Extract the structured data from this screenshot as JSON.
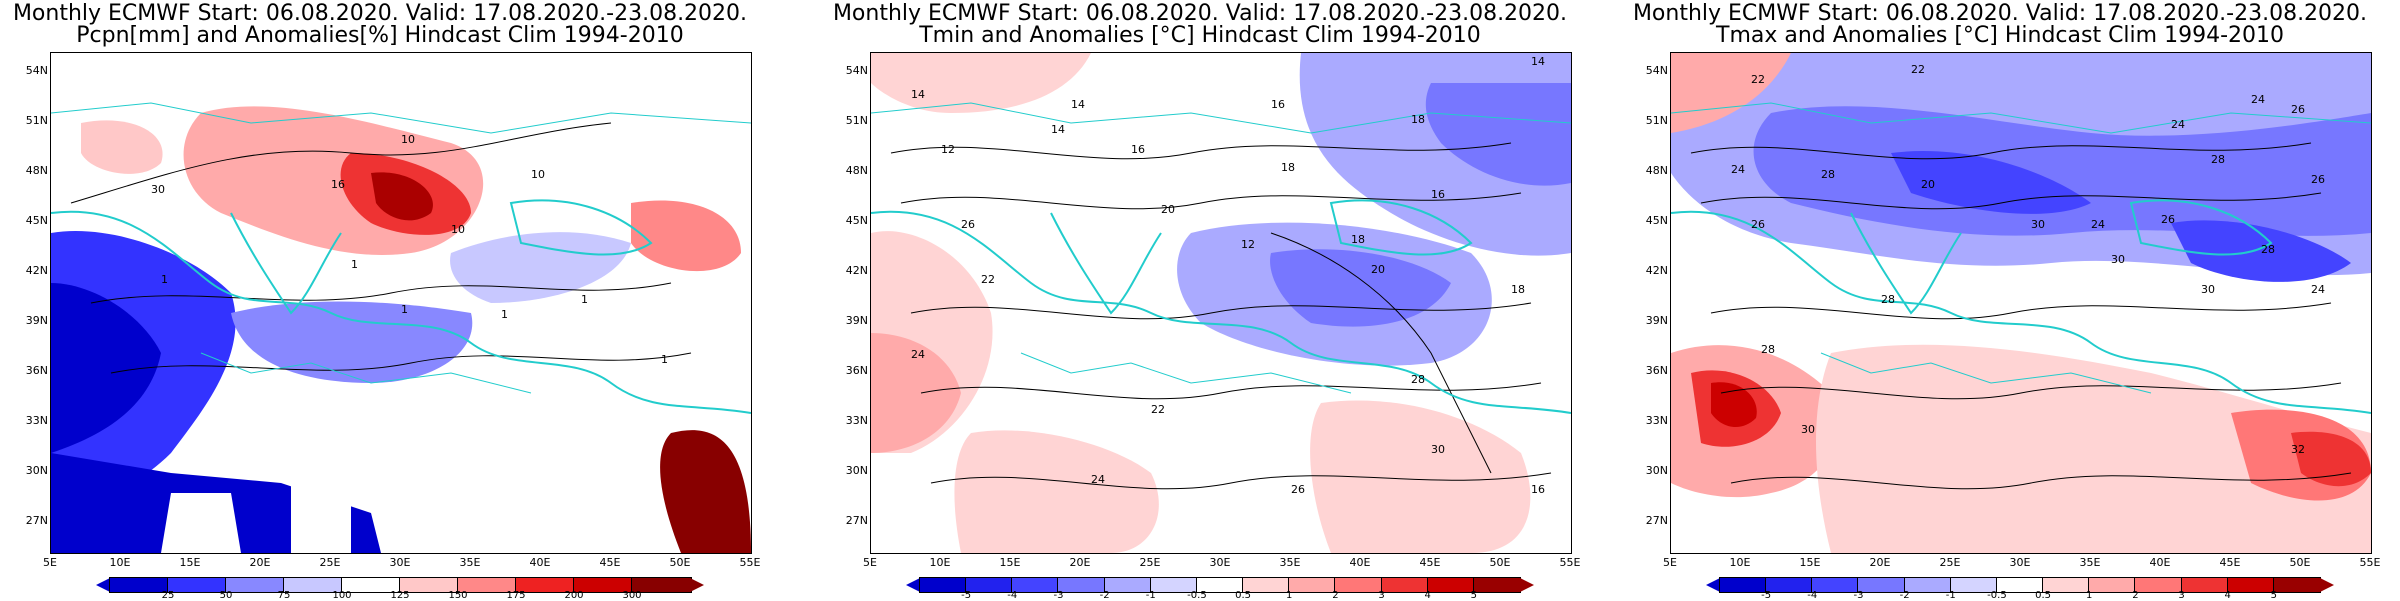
{
  "panels": [
    {
      "id": "pcpn",
      "title_line1": "Monthly ECMWF Start: 06.08.2020. Valid: 17.08.2020.-23.08.2020.",
      "title_line2": "Pcpn[mm] and Anomalies[%] Hindcast Clim 1994-2010",
      "colorbar_labels": [
        "25",
        "50",
        "75",
        "100",
        "125",
        "150",
        "175",
        "200",
        "300"
      ],
      "colorbar_colors": [
        "#0000cc",
        "#3333ff",
        "#8888ff",
        "#c8c8ff",
        "#ffffff",
        "#ffc8c8",
        "#ff8888",
        "#ee2222",
        "#cc0000",
        "#880000"
      ],
      "contour_labels": [
        "10",
        "30",
        "16",
        "10",
        "1",
        "1",
        "10",
        "1",
        "1",
        "1",
        "1"
      ]
    },
    {
      "id": "tmin",
      "title_line1": "Monthly ECMWF Start: 06.08.2020. Valid: 17.08.2020.-23.08.2020.",
      "title_line2": "Tmin and Anomalies [°C] Hindcast Clim 1994-2010",
      "colorbar_labels": [
        "-5",
        "-4",
        "-3",
        "-2",
        "-1",
        "-0.5",
        "0.5",
        "1",
        "2",
        "3",
        "4",
        "5"
      ],
      "colorbar_colors": [
        "#0000cc",
        "#2222ee",
        "#4444ff",
        "#7777ff",
        "#aaaaff",
        "#d4d4ff",
        "#ffffff",
        "#ffd4d4",
        "#ffaaaa",
        "#ff7777",
        "#ee3333",
        "#cc0000",
        "#990000"
      ],
      "contour_labels": [
        "14",
        "14",
        "14",
        "16",
        "12",
        "18",
        "16",
        "14",
        "18",
        "16",
        "20",
        "12",
        "18",
        "18",
        "20",
        "22",
        "26",
        "24",
        "22",
        "26",
        "24",
        "28",
        "30",
        "16"
      ]
    },
    {
      "id": "tmax",
      "title_line1": "Monthly ECMWF Start: 06.08.2020. Valid: 17.08.2020.-23.08.2020.",
      "title_line2": "Tmax and Anomalies [°C] Hindcast Clim 1994-2010",
      "colorbar_labels": [
        "-5",
        "-4",
        "-3",
        "-2",
        "-1",
        "-0.5",
        "0.5",
        "1",
        "2",
        "3",
        "4",
        "5"
      ],
      "colorbar_colors": [
        "#0000cc",
        "#2222ee",
        "#4444ff",
        "#7777ff",
        "#aaaaff",
        "#d4d4ff",
        "#ffffff",
        "#ffd4d4",
        "#ffaaaa",
        "#ff7777",
        "#ee3333",
        "#cc0000",
        "#990000"
      ],
      "contour_labels": [
        "22",
        "22",
        "24",
        "26",
        "24",
        "28",
        "26",
        "20",
        "24",
        "26",
        "28",
        "30",
        "28",
        "24",
        "30",
        "28",
        "26",
        "30",
        "24",
        "28",
        "30",
        "32"
      ]
    }
  ],
  "axes": {
    "y_ticks": [
      "54N",
      "51N",
      "48N",
      "45N",
      "42N",
      "39N",
      "36N",
      "33N",
      "30N",
      "27N"
    ],
    "x_ticks": [
      "5E",
      "10E",
      "15E",
      "20E",
      "25E",
      "30E",
      "35E",
      "40E",
      "45E",
      "50E",
      "55E"
    ]
  },
  "colors": {
    "coastline": "#22cccc",
    "contour": "#000000"
  }
}
